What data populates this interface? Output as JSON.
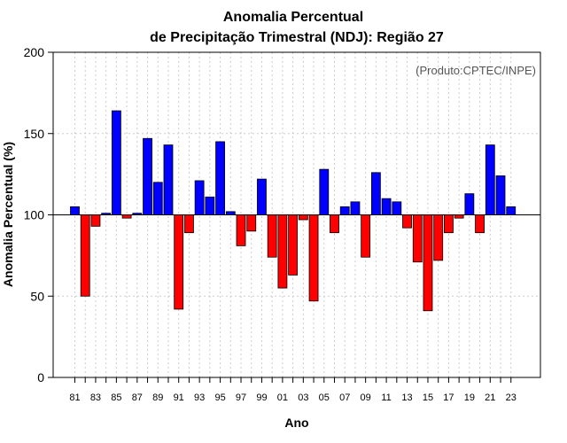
{
  "chart_data": {
    "type": "bar",
    "title": "Anomalia Percentual",
    "subtitle": "de Precipitação Trimestral (NDJ): Região 27",
    "xlabel": "Ano",
    "ylabel": "Anomalia Percentual (%)",
    "credit": "(Produto:CPTEC/INPE)",
    "ylim": [
      0,
      200
    ],
    "yticks": [
      0,
      50,
      100,
      150,
      200
    ],
    "baseline": 100,
    "grid": true,
    "colors": {
      "above": "#0000ff",
      "below": "#ff0000",
      "outline": "#000000",
      "grid": "#cccccc"
    },
    "categories": [
      "81",
      "82",
      "83",
      "84",
      "85",
      "86",
      "87",
      "88",
      "89",
      "90",
      "91",
      "92",
      "93",
      "94",
      "95",
      "96",
      "97",
      "98",
      "99",
      "00",
      "01",
      "02",
      "03",
      "04",
      "05",
      "06",
      "07",
      "08",
      "09",
      "10",
      "11",
      "12",
      "13",
      "14",
      "15",
      "16",
      "17",
      "18",
      "19",
      "20",
      "21",
      "22",
      "23"
    ],
    "tick_labels": [
      "81",
      "83",
      "85",
      "87",
      "89",
      "91",
      "93",
      "95",
      "97",
      "99",
      "01",
      "03",
      "05",
      "07",
      "09",
      "11",
      "13",
      "15",
      "17",
      "19",
      "21",
      "23"
    ],
    "values": [
      105,
      50,
      93,
      101,
      164,
      98,
      101,
      147,
      120,
      143,
      42,
      89,
      121,
      111,
      145,
      102,
      81,
      90,
      122,
      74,
      55,
      63,
      97,
      47,
      128,
      89,
      105,
      108,
      74,
      126,
      110,
      108,
      92,
      71,
      41,
      72,
      89,
      98,
      113,
      89,
      143,
      124,
      105
    ]
  }
}
